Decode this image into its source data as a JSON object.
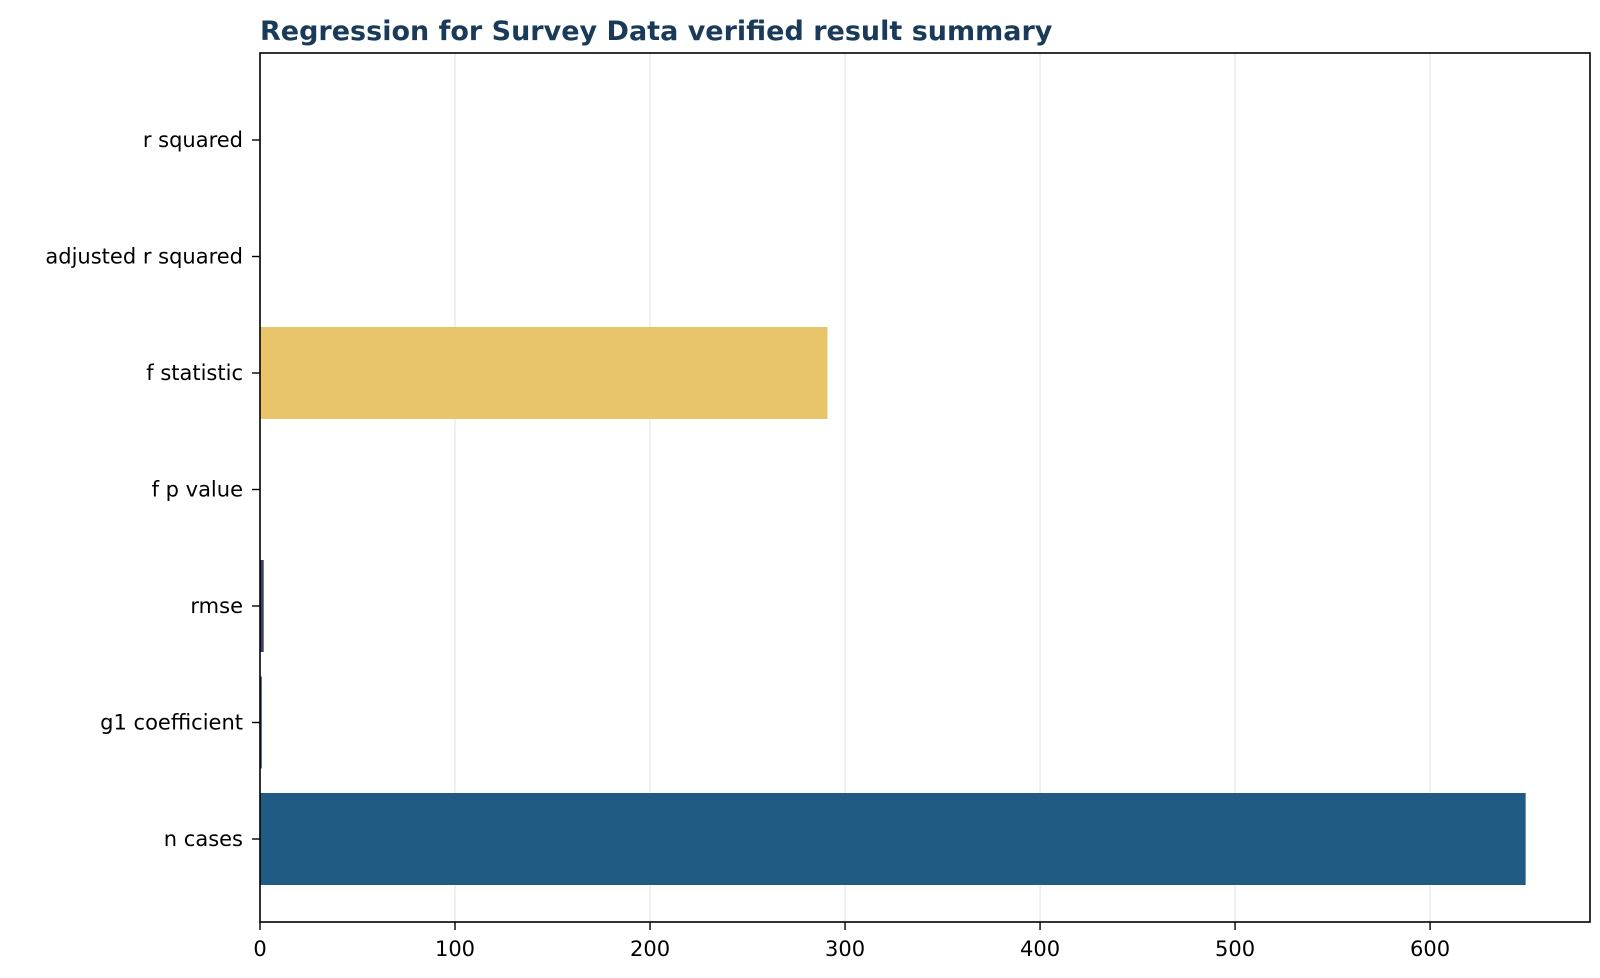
{
  "chart_data": {
    "type": "bar",
    "orientation": "horizontal",
    "title": "Regression for Survey Data verified result summary",
    "xlabel": "",
    "ylabel": "",
    "categories": [
      "r squared",
      "adjusted r squared",
      "f statistic",
      "f p value",
      "rmse",
      "g1 coefficient",
      "n cases"
    ],
    "values": [
      0.31,
      0.31,
      291,
      0.0,
      1.9,
      0.9,
      649
    ],
    "bar_colors": [
      "#1f5b82",
      "#1f5b82",
      "#e8c46b",
      "#1f5b82",
      "#3d3d6b",
      "#1f4a6b",
      "#1f5b82"
    ],
    "xlim": [
      0,
      682
    ],
    "xticks": [
      0,
      100,
      200,
      300,
      400,
      500,
      600
    ],
    "grid": true,
    "legend": "none",
    "title_color": "#1a3a5a"
  }
}
